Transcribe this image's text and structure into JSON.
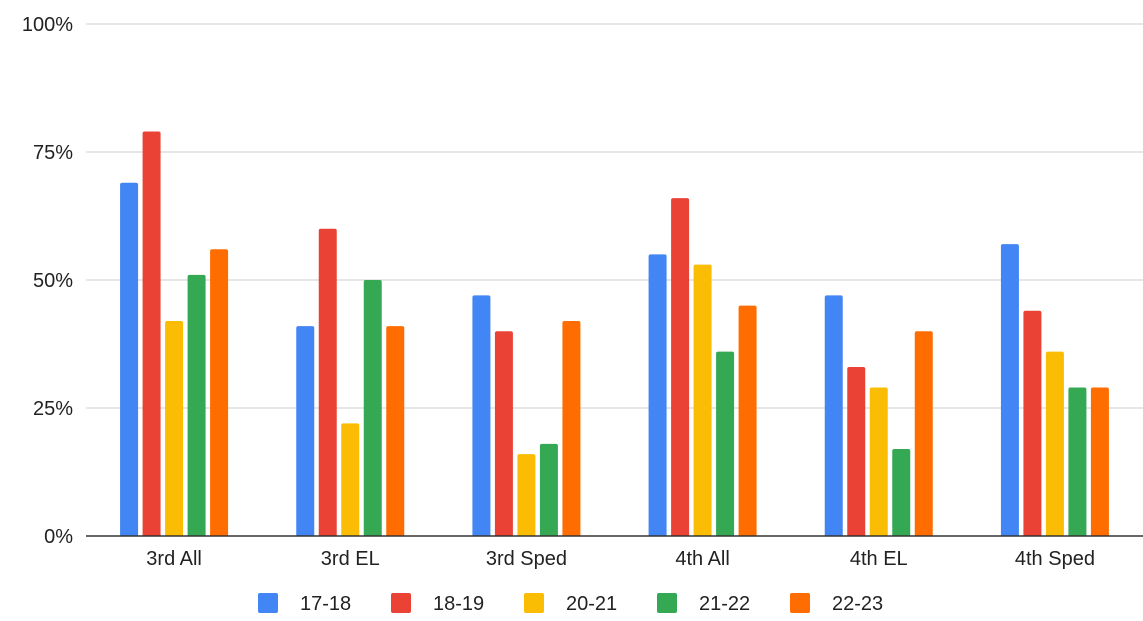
{
  "chart_data": {
    "type": "bar",
    "categories": [
      "3rd All",
      "3rd EL",
      "3rd Sped",
      "4th All",
      "4th EL",
      "4th Sped"
    ],
    "series": [
      {
        "name": "17-18",
        "color": "#4285F4",
        "values": [
          69,
          41,
          47,
          55,
          47,
          57
        ]
      },
      {
        "name": "18-19",
        "color": "#EA4335",
        "values": [
          79,
          60,
          40,
          66,
          33,
          44
        ]
      },
      {
        "name": "20-21",
        "color": "#FBBC04",
        "values": [
          42,
          22,
          16,
          53,
          29,
          36
        ]
      },
      {
        "name": "21-22",
        "color": "#34A853",
        "values": [
          51,
          50,
          18,
          36,
          17,
          29
        ]
      },
      {
        "name": "22-23",
        "color": "#FF6D01",
        "values": [
          56,
          41,
          42,
          45,
          40,
          29
        ]
      }
    ],
    "yticks": [
      "0%",
      "25%",
      "50%",
      "75%",
      "100%"
    ],
    "ylim": [
      0,
      100
    ],
    "grid": true,
    "legend_position": "bottom"
  }
}
